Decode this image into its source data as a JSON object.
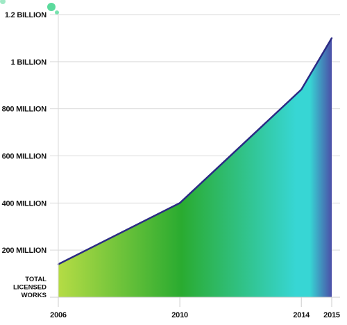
{
  "chart_data": {
    "type": "area",
    "x": [
      2006,
      2010,
      2014,
      2015
    ],
    "x_tick_labels": [
      "2006",
      "2010",
      "2014",
      "2015"
    ],
    "series": [
      {
        "values": [
          140000000,
          400000000,
          882000000,
          1100000000
        ]
      }
    ],
    "ylim": [
      0,
      1200000000
    ],
    "y_ticks": [
      200000000,
      400000000,
      600000000,
      800000000,
      1000000000,
      1200000000
    ],
    "y_tick_labels": [
      "200 MILLION",
      "400 MILLION",
      "600 MILLION",
      "800 MILLION",
      "1 BILLION",
      "1.2 BILLION"
    ],
    "ylabel_lines": [
      "TOTAL",
      "LICENSED",
      "WORKS"
    ],
    "grid": "horizontal",
    "legend": "none"
  },
  "colors": {
    "line": "#2b2a84",
    "fill_2006": "#b5dc45",
    "fill_2010": "#2aab30",
    "fill_2014": "#37d6d4",
    "fill_2015": "#4b4fa8",
    "grid": "#d9d9d9",
    "axis": "#cccccc",
    "decor": "#3fd48c"
  }
}
